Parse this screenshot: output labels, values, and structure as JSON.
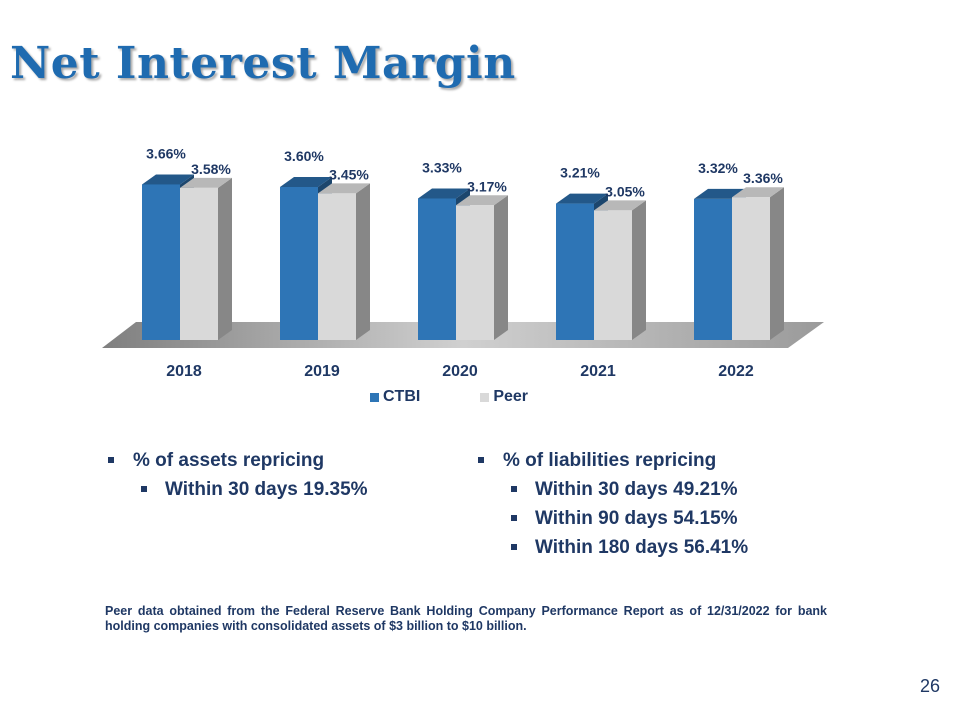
{
  "slide": {
    "title": "Net Interest Margin",
    "page_number": "26"
  },
  "chart_data": {
    "type": "bar",
    "categories": [
      "2018",
      "2019",
      "2020",
      "2021",
      "2022"
    ],
    "series": [
      {
        "name": "CTBI",
        "values": [
          3.66,
          3.6,
          3.33,
          3.21,
          3.32
        ],
        "labels": [
          "3.66%",
          "3.60%",
          "3.33%",
          "3.21%",
          "3.32%"
        ],
        "color": "#2e75b6"
      },
      {
        "name": "Peer",
        "values": [
          3.58,
          3.45,
          3.17,
          3.05,
          3.36
        ],
        "labels": [
          "3.58%",
          "3.45%",
          "3.17%",
          "3.05%",
          "3.36%"
        ],
        "color": "#d9d9d9"
      }
    ],
    "ylim": [
      0,
      4.0
    ],
    "grid": false,
    "legend": "bottom",
    "three_d": true
  },
  "bullets": {
    "left": [
      {
        "level": 1,
        "text": "% of assets repricing"
      },
      {
        "level": 2,
        "text": "Within 30 days 19.35%"
      }
    ],
    "right": [
      {
        "level": 1,
        "text": "% of liabilities  repricing"
      },
      {
        "level": 2,
        "text": "Within 30 days 49.21%"
      },
      {
        "level": 2,
        "text": "Within 90 days 54.15%"
      },
      {
        "level": 2,
        "text": "Within 180 days 56.41%"
      }
    ]
  },
  "footnote": "Peer data obtained from the Federal Reserve Bank Holding Company Performance Report as of 12/31/2022 for bank holding companies with consolidated assets of $3 billion to $10 billion."
}
